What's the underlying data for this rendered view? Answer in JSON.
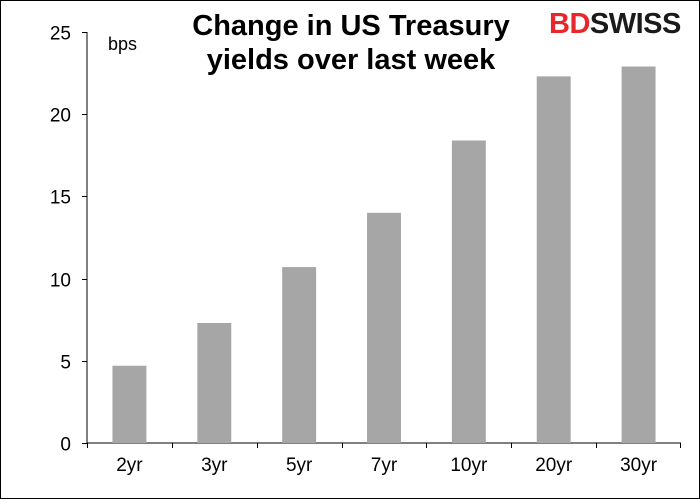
{
  "chart_data": {
    "type": "bar",
    "title_line1": "Change in US Treasury",
    "title_line2": "yields over last week",
    "ylabel": "bps",
    "categories": [
      "2yr",
      "3yr",
      "5yr",
      "7yr",
      "10yr",
      "20yr",
      "30yr"
    ],
    "values": [
      4.7,
      7.3,
      10.7,
      14.0,
      18.4,
      22.3,
      22.9
    ],
    "ylim": [
      0,
      25
    ],
    "yticks": [
      0,
      5,
      10,
      15,
      20,
      25
    ],
    "grid": false,
    "legend": "none",
    "bar_color": "#a6a6a6"
  },
  "brand": {
    "part1": "BD",
    "part2": "SWISS",
    "accent_color": "#e8262b"
  }
}
